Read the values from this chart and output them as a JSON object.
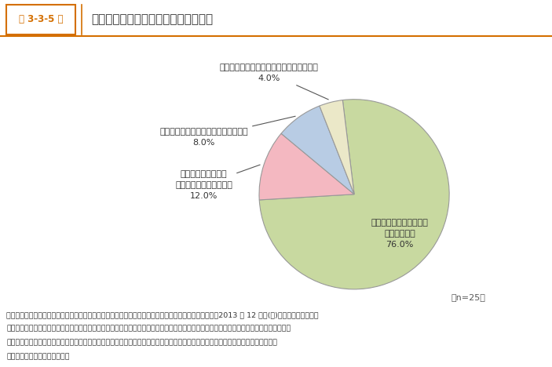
{
  "title": "事業承継に関して相談しなかった理由",
  "title_prefix": "第 3-3-5 図",
  "slices": [
    {
      "value": 76.0,
      "color": "#c8d9a0",
      "label_inside": "相談しても解決するとは\n思えなかった\n76.0%"
    },
    {
      "value": 12.0,
      "color": "#f4b8c1",
      "label_line1": "承継のことは誰にも",
      "label_line2": "相談しないと決めていた",
      "label_pct": "12.0%"
    },
    {
      "value": 8.0,
      "color": "#b8cce4",
      "label_line1": "相談しなくても何とかできると思った",
      "label_line2": "",
      "label_pct": "8.0%"
    },
    {
      "value": 4.0,
      "color": "#ebe8c8",
      "label_line1": "相談したことを周囲に知られたくなかった",
      "label_line2": "",
      "label_pct": "4.0%"
    }
  ],
  "note": "（n=25）",
  "footer_lines": [
    "資料：中小企業庁委託「中小企業者・小規模企業者の経営実態及び事業承継に関するアンケート調査」（2013 年 12 月、(株)帝国データバンク）",
    "（注）「自分の代で廃業することもやむを得ない」と回答した者のうち、事業承継を検討した経験のある者に、事業承継が円滑に進まなかっ",
    "　た理由について１位から３位まで回答してもらい、「事業承継に関して誰にも相談しなかった」を１位から３位のいずれかで回答し",
    "　た者について集計している。"
  ],
  "startangle": 97,
  "background_color": "#ffffff",
  "title_color": "#333333",
  "prefix_color": "#d46f00",
  "edge_color": "#999999",
  "label_color": "#333333"
}
